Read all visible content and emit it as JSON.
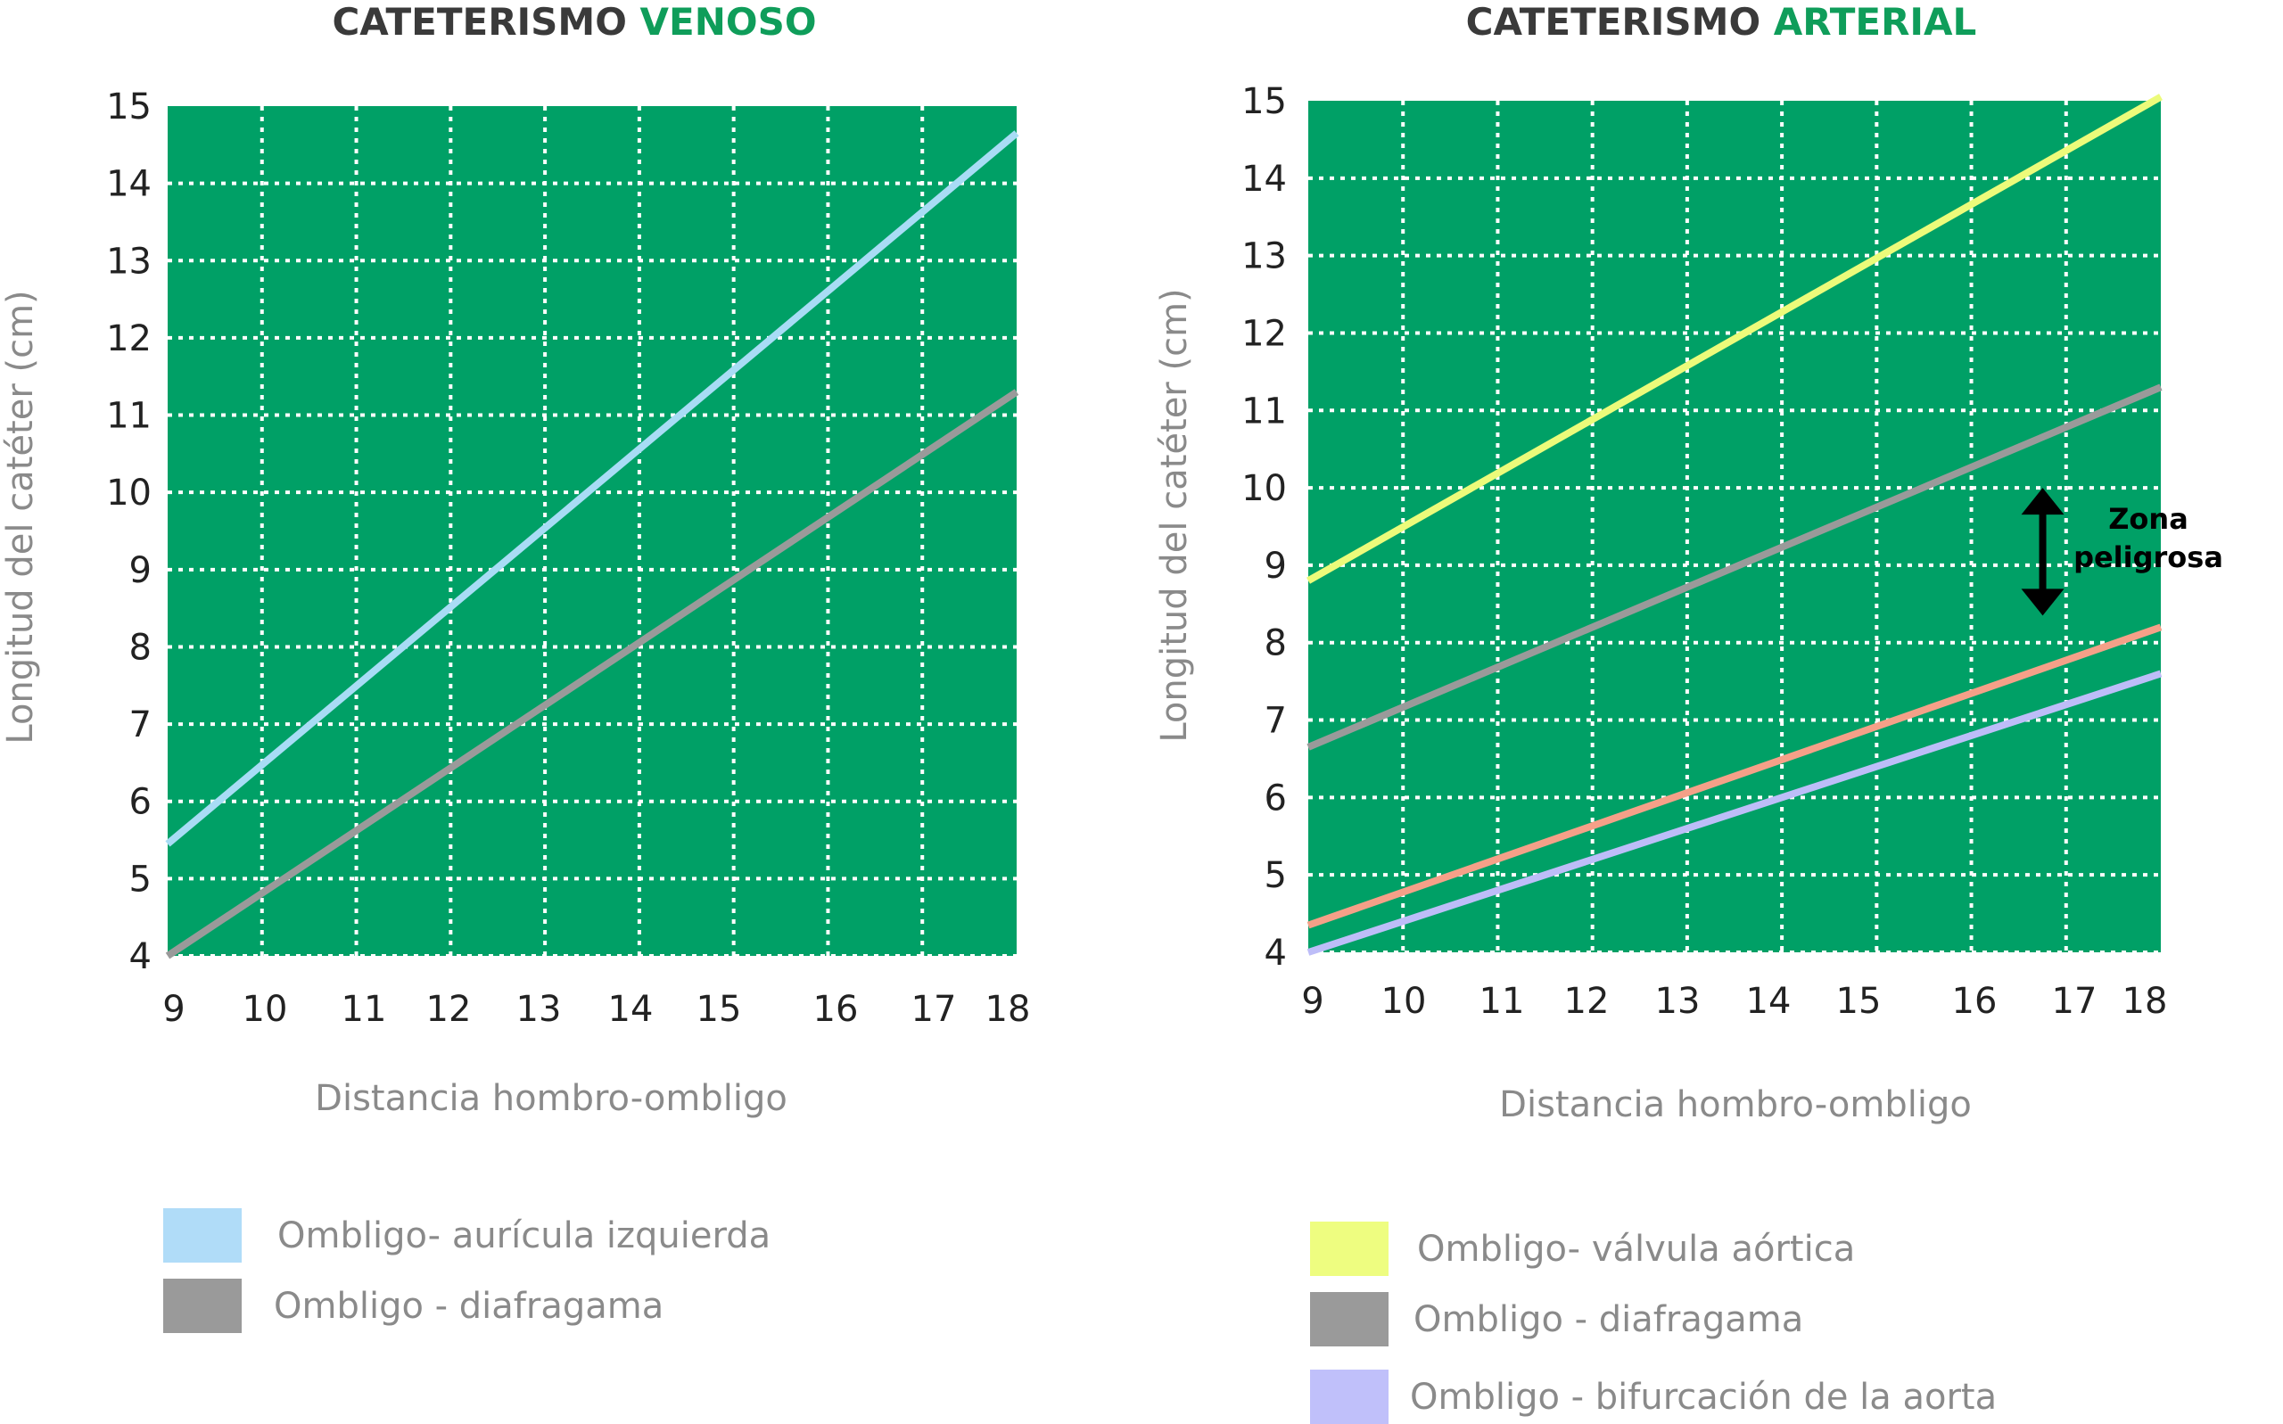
{
  "chart_data": [
    {
      "type": "line",
      "title_prefix": "CATETERISMO",
      "title_accent": "VENOSO",
      "xlabel": "Distancia hombro-ombligo",
      "ylabel": "Longitud del catéter (cm)",
      "xlim": [
        9,
        18
      ],
      "ylim": [
        4,
        15
      ],
      "x_ticks": [
        "9",
        "10",
        "11",
        "12",
        "13",
        "14",
        "15",
        "16",
        "17",
        "18"
      ],
      "y_ticks": [
        "4",
        "5",
        "6",
        "7",
        "8",
        "9",
        "10",
        "11",
        "12",
        "13",
        "14",
        "15"
      ],
      "grid": true,
      "background": "#00a066",
      "series": [
        {
          "name": "Ombligo- aurícula izquierda",
          "color": "#a8dcf5",
          "x": [
            9,
            18
          ],
          "y": [
            5.45,
            14.65
          ]
        },
        {
          "name": "Ombligo - diafragama",
          "color": "#9a9a9a",
          "x": [
            9,
            18
          ],
          "y": [
            4.0,
            11.3
          ]
        }
      ],
      "legend": [
        {
          "label": "Ombligo- aurícula izquierda",
          "color": "#b0dcf8"
        },
        {
          "label": "Ombligo - diafragama",
          "color": "#9a9a9a"
        }
      ]
    },
    {
      "type": "line",
      "title_prefix": "CATETERISMO",
      "title_accent": "ARTERIAL",
      "xlabel": "Distancia hombro-ombligo",
      "ylabel": "Longitud del catéter (cm)",
      "xlim": [
        9,
        18
      ],
      "ylim": [
        4,
        15
      ],
      "x_ticks": [
        "9",
        "10",
        "11",
        "12",
        "13",
        "14",
        "15",
        "16",
        "17",
        "18"
      ],
      "y_ticks": [
        "4",
        "5",
        "6",
        "7",
        "8",
        "9",
        "10",
        "11",
        "12",
        "13",
        "14",
        "15"
      ],
      "grid": true,
      "background": "#00a066",
      "series": [
        {
          "name": "Ombligo- válvula aórtica",
          "color": "#ecfb7a",
          "x": [
            9,
            18
          ],
          "y": [
            8.8,
            15.05
          ]
        },
        {
          "name": "Ombligo - diafragama",
          "color": "#9a9a9a",
          "x": [
            9,
            18
          ],
          "y": [
            6.65,
            11.3
          ]
        },
        {
          "name": "",
          "color": "#f5a088",
          "x": [
            9,
            18
          ],
          "y": [
            4.35,
            8.2
          ]
        },
        {
          "name": "Ombligo - bifurcación de la aorta",
          "color": "#bdbdf8",
          "x": [
            9,
            18
          ],
          "y": [
            4.0,
            7.6
          ]
        }
      ],
      "annotation": {
        "text_line1": "Zona",
        "text_line2": "peligrosa",
        "x": 16.8,
        "y_from": 8.35,
        "y_to": 10.0
      },
      "legend": [
        {
          "label": "Ombligo- válvula aórtica",
          "color": "#eefd80"
        },
        {
          "label": "Ombligo - diafragama",
          "color": "#9a9a9a"
        },
        {
          "label": "Ombligo - bifurcación de la aorta",
          "color": "#c0c0fa"
        }
      ]
    }
  ]
}
